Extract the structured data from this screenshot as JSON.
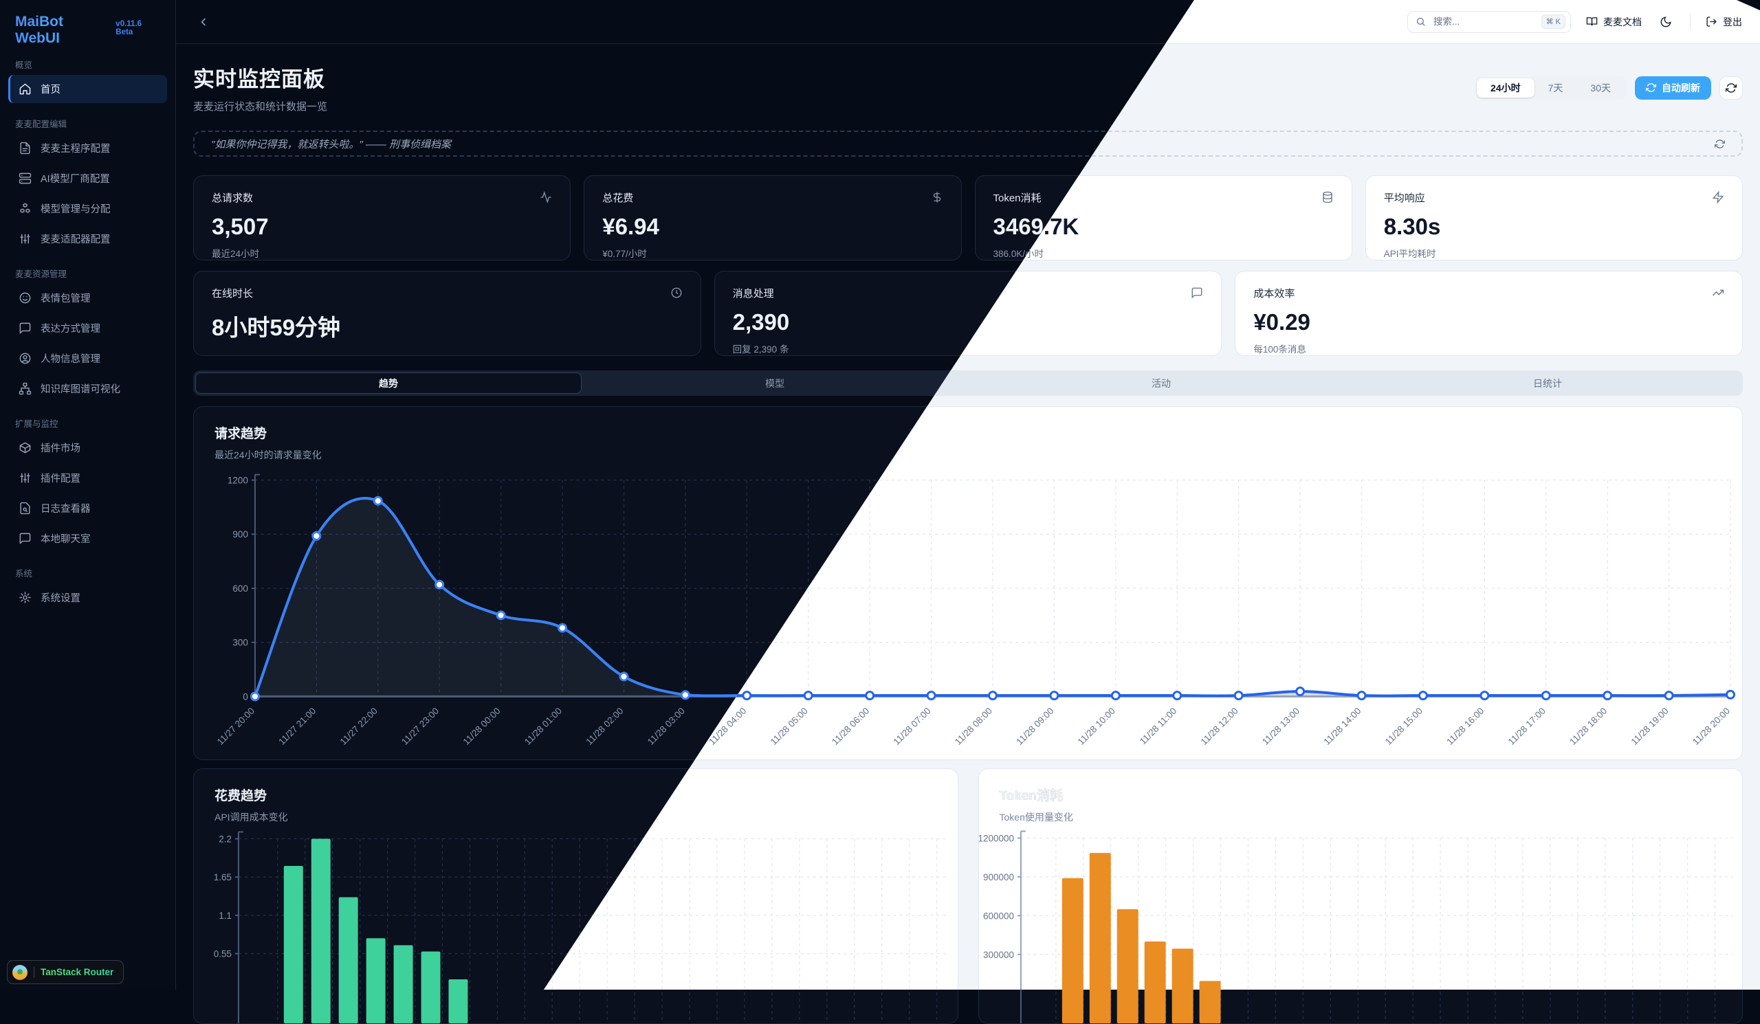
{
  "app": {
    "brand": "MaiBot WebUI",
    "version": "v0.11.6 Beta"
  },
  "topbar": {
    "search_placeholder": "搜索...",
    "search_shortcut": "⌘ K",
    "docs_label": "麦麦文档",
    "logout_label": "登出"
  },
  "sidebar": {
    "sections": [
      {
        "label": "概览",
        "items": [
          {
            "label": "首页",
            "icon": "home-icon",
            "active": true
          }
        ]
      },
      {
        "label": "麦麦配置编辑",
        "items": [
          {
            "label": "麦麦主程序配置",
            "icon": "file-text-icon"
          },
          {
            "label": "AI模型厂商配置",
            "icon": "server-icon"
          },
          {
            "label": "模型管理与分配",
            "icon": "boxes-icon"
          },
          {
            "label": "麦麦适配器配置",
            "icon": "sliders-icon"
          }
        ]
      },
      {
        "label": "麦麦资源管理",
        "items": [
          {
            "label": "表情包管理",
            "icon": "smile-icon"
          },
          {
            "label": "表达方式管理",
            "icon": "message-square-icon"
          },
          {
            "label": "人物信息管理",
            "icon": "user-circle-icon"
          },
          {
            "label": "知识库图谱可视化",
            "icon": "network-icon"
          }
        ]
      },
      {
        "label": "扩展与监控",
        "items": [
          {
            "label": "插件市场",
            "icon": "package-icon"
          },
          {
            "label": "插件配置",
            "icon": "sliders-icon"
          },
          {
            "label": "日志查看器",
            "icon": "file-search-icon"
          },
          {
            "label": "本地聊天室",
            "icon": "message-square-icon"
          }
        ]
      },
      {
        "label": "系统",
        "items": [
          {
            "label": "系统设置",
            "icon": "gear-icon"
          }
        ]
      }
    ]
  },
  "badge": {
    "label": "TanStack Router"
  },
  "header": {
    "title": "实时监控面板",
    "subtitle": "麦麦运行状态和统计数据一览",
    "range_options": [
      "24小时",
      "7天",
      "30天"
    ],
    "active_range": "24小时",
    "auto_refresh_label": "自动刷新"
  },
  "quote": {
    "text": "\"如果你仲记得我，就返转头啦。\" —— 刑事侦缉档案"
  },
  "stats_row1": [
    {
      "label": "总请求数",
      "value": "3,507",
      "sub": "最近24小时",
      "icon": "activity-icon"
    },
    {
      "label": "总花费",
      "value": "¥6.94",
      "sub": "¥0.77/小时",
      "icon": "dollar-icon"
    },
    {
      "label": "Token消耗",
      "value": "3469.7K",
      "sub": "386.0K/小时",
      "icon": "database-icon"
    },
    {
      "label": "平均响应",
      "value": "8.30s",
      "sub": "API平均耗时",
      "icon": "zap-icon"
    }
  ],
  "stats_row2": [
    {
      "label": "在线时长",
      "value": "8小时59分钟",
      "sub": "",
      "icon": "clock-icon"
    },
    {
      "label": "消息处理",
      "value": "2,390",
      "sub": "回复 2,390 条",
      "icon": "message-square-icon"
    },
    {
      "label": "成本效率",
      "value": "¥0.29",
      "sub": "每100条消息",
      "icon": "trending-up-icon"
    }
  ],
  "tabs": {
    "labels": [
      "趋势",
      "模型",
      "活动",
      "日统计"
    ],
    "active": "趋势"
  },
  "theme_colors": {
    "accent_blue": "#3b82f6",
    "auto_refresh_blue": "#3ba6f8",
    "bar_green": "#3ed19b",
    "bar_orange": "#ea8d22"
  },
  "chart_data": [
    {
      "type": "line",
      "title": "请求趋势",
      "subtitle": "最近24小时的请求量变化",
      "categories": [
        "11/27 20:00",
        "11/27 21:00",
        "11/27 22:00",
        "11/27 23:00",
        "11/28 00:00",
        "11/28 01:00",
        "11/28 02:00",
        "11/28 03:00",
        "11/28 04:00",
        "11/28 05:00",
        "11/28 06:00",
        "11/28 07:00",
        "11/28 08:00",
        "11/28 09:00",
        "11/28 10:00",
        "11/28 11:00",
        "11/28 12:00",
        "11/28 13:00",
        "11/28 14:00",
        "11/28 15:00",
        "11/28 16:00",
        "11/28 17:00",
        "11/28 18:00",
        "11/28 19:00",
        "11/28 20:00"
      ],
      "values": [
        0,
        890,
        1085,
        620,
        450,
        380,
        110,
        8,
        5,
        5,
        5,
        5,
        5,
        5,
        5,
        5,
        5,
        28,
        5,
        5,
        5,
        5,
        5,
        5,
        10
      ],
      "ylim": [
        0,
        1200
      ],
      "yticks": [
        0,
        300,
        600,
        900,
        1200
      ],
      "ytick_labels": [
        "0",
        "300",
        "600",
        "900",
        "1200"
      ],
      "grid": true,
      "legend": "none"
    },
    {
      "type": "bar",
      "title": "花费趋势",
      "subtitle": "API调用成本变化",
      "values": [
        1.81,
        2.2,
        1.36,
        0.77,
        0.67,
        0.58,
        0.18
      ],
      "ylim": [
        0,
        2.42
      ],
      "yticks": [
        0.55,
        1.1,
        1.65,
        2.2
      ],
      "ytick_labels": [
        "0.55",
        "1.1",
        "1.65",
        "2.2"
      ],
      "color": "#3ed19b",
      "grid": true,
      "legend": "none"
    },
    {
      "type": "bar",
      "title": "Token消耗",
      "subtitle": "Token使用量变化",
      "values": [
        890000,
        1085000,
        650000,
        400000,
        345000,
        95000
      ],
      "ylim": [
        0,
        1320000
      ],
      "yticks": [
        300000,
        600000,
        900000,
        1200000
      ],
      "ytick_labels": [
        "300000",
        "600000",
        "900000",
        "1200000"
      ],
      "color": "#ea8d22",
      "grid": true,
      "legend": "none"
    }
  ]
}
